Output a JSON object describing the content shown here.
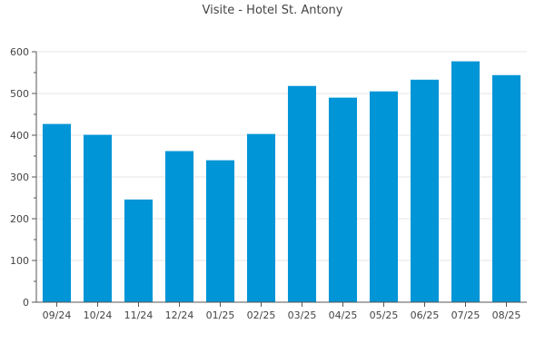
{
  "chart_data": {
    "type": "bar",
    "title": "Visite - Hotel St. Antony",
    "xlabel": "",
    "ylabel": "",
    "categories": [
      "09/24",
      "10/24",
      "11/24",
      "12/24",
      "01/25",
      "02/25",
      "03/25",
      "04/25",
      "05/25",
      "06/25",
      "07/25",
      "08/25"
    ],
    "values": [
      427,
      401,
      246,
      362,
      340,
      403,
      518,
      490,
      505,
      533,
      577,
      544
    ],
    "ylim": [
      0,
      600
    ],
    "yticks": [
      0,
      100,
      200,
      300,
      400,
      500,
      600
    ],
    "grid": true,
    "legend": "none",
    "colors": {
      "bar": "#0095d6",
      "grid": "#e6e6e6",
      "axis": "#555555",
      "text": "#444444"
    }
  }
}
